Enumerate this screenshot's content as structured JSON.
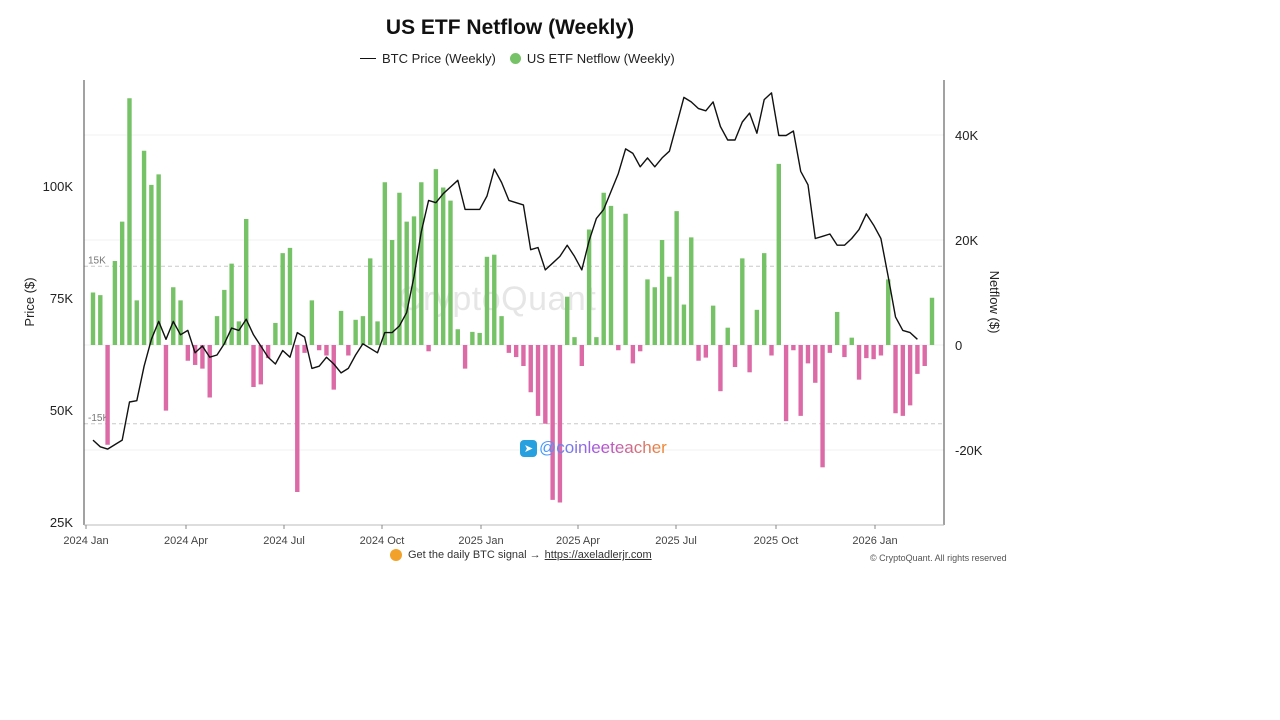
{
  "title": "US ETF Netflow (Weekly)",
  "legend": {
    "price_label": "BTC Price (Weekly)",
    "netflow_label": "US ETF Netflow (Weekly)"
  },
  "watermark": "CryptoQuant",
  "overlay": {
    "icon": "telegram-icon",
    "handle": "@coinleeteacher"
  },
  "footer": {
    "signal_text": "Get the daily BTC signal →",
    "signal_url": "https://axeladlerjr.com",
    "copyright": "© CryptoQuant. All rights reserved"
  },
  "colors": {
    "inflow": "#76c267",
    "outflow": "#dc6aa6",
    "price": "#111111",
    "refline": "#c8c8c8"
  },
  "chart_data": {
    "type": "bar+line",
    "title": "US ETF Netflow (Weekly)",
    "x_tick_labels": [
      "2024 Jan",
      "2024 Apr",
      "2024 Jul",
      "2024 Oct",
      "2025 Jan",
      "2025 Apr",
      "2025 Jul",
      "2025 Oct",
      "2026 Jan"
    ],
    "left_axis": {
      "label": "Price ($)",
      "ticks": [
        25000,
        50000,
        75000,
        100000
      ],
      "tick_labels": [
        "25K",
        "50K",
        "75K",
        "100K"
      ],
      "range": [
        25000,
        120000
      ]
    },
    "right_axis": {
      "label": "Netflow ($)",
      "ticks": [
        -20000,
        0,
        20000,
        40000
      ],
      "tick_labels": [
        "-20K",
        "0",
        "20K",
        "40K"
      ],
      "range": [
        -34000,
        50000
      ]
    },
    "reference_lines": [
      {
        "value": 15000,
        "label": "15K"
      },
      {
        "value": -15000,
        "label": "-15K"
      }
    ],
    "series": [
      {
        "name": "US ETF Netflow (Weekly)",
        "type": "bar",
        "axis": "right",
        "values": [
          10000,
          9500,
          -19000,
          16000,
          23500,
          47000,
          8500,
          37000,
          30500,
          32500,
          -12500,
          11000,
          8500,
          -3000,
          -3800,
          -4500,
          -10000,
          5500,
          10500,
          15500,
          4500,
          24000,
          -8000,
          -7500,
          -2500,
          4200,
          17500,
          18500,
          -28000,
          -1500,
          8500,
          -1000,
          -2000,
          -8500,
          6500,
          -2000,
          4800,
          5500,
          16500,
          4500,
          31000,
          20000,
          29000,
          23500,
          24500,
          31000,
          -1200,
          33500,
          30000,
          27500,
          3000,
          -4500,
          2500,
          2300,
          16800,
          17200,
          5500,
          -1500,
          -2300,
          -4000,
          -9000,
          -13500,
          -15000,
          -29500,
          -30000,
          9200,
          1500,
          -4000,
          22000,
          1500,
          29000,
          26500,
          -1000,
          25000,
          -3500,
          -1200,
          12500,
          11000,
          20000,
          13000,
          25500,
          7700,
          20500,
          -3000,
          -2400,
          7500,
          -8800,
          3300,
          -4200,
          16500,
          -5200,
          6700,
          17500,
          -2000,
          34500,
          -14500,
          -1000,
          -13500,
          -3500,
          -7200,
          -23300,
          -1500,
          6300,
          -2300,
          1400,
          -6600,
          -2500,
          -2700,
          -2000,
          12500,
          -13000,
          -13500,
          -11500,
          -5500,
          -4000,
          9000
        ],
        "note": "one bar per week, Jan 2024 – Feb 2026 (values estimated from chart)"
      },
      {
        "name": "BTC Price (Weekly)",
        "type": "line",
        "axis": "left",
        "points": [
          [
            0,
            43500
          ],
          [
            1,
            42000
          ],
          [
            2,
            41500
          ],
          [
            3,
            42500
          ],
          [
            4,
            43500
          ],
          [
            5,
            52000
          ],
          [
            6,
            52300
          ],
          [
            7,
            60000
          ],
          [
            8,
            66000
          ],
          [
            9,
            70000
          ],
          [
            10,
            66000
          ],
          [
            11,
            70000
          ],
          [
            12,
            67000
          ],
          [
            13,
            68000
          ],
          [
            14,
            63000
          ],
          [
            15,
            64500
          ],
          [
            16,
            62000
          ],
          [
            17,
            62500
          ],
          [
            18,
            65000
          ],
          [
            19,
            68500
          ],
          [
            20,
            68000
          ],
          [
            21,
            70500
          ],
          [
            22,
            67000
          ],
          [
            23,
            64500
          ],
          [
            24,
            62000
          ],
          [
            25,
            60500
          ],
          [
            26,
            63500
          ],
          [
            27,
            62000
          ],
          [
            28,
            67500
          ],
          [
            29,
            66500
          ],
          [
            30,
            59500
          ],
          [
            31,
            60000
          ],
          [
            32,
            62000
          ],
          [
            33,
            60500
          ],
          [
            34,
            58500
          ],
          [
            35,
            59500
          ],
          [
            36,
            62500
          ],
          [
            37,
            65000
          ],
          [
            38,
            64000
          ],
          [
            39,
            63000
          ],
          [
            40,
            67500
          ],
          [
            41,
            67500
          ],
          [
            42,
            69000
          ],
          [
            43,
            72000
          ],
          [
            44,
            80000
          ],
          [
            45,
            90000
          ],
          [
            46,
            97000
          ],
          [
            47,
            96500
          ],
          [
            48,
            98500
          ],
          [
            49,
            100000
          ],
          [
            50,
            101500
          ],
          [
            51,
            95000
          ],
          [
            52,
            95000
          ],
          [
            53,
            95000
          ],
          [
            54,
            98000
          ],
          [
            55,
            104000
          ],
          [
            56,
            101000
          ],
          [
            57,
            97000
          ],
          [
            58,
            96500
          ],
          [
            59,
            96000
          ],
          [
            60,
            86000
          ],
          [
            61,
            86500
          ],
          [
            62,
            81500
          ],
          [
            63,
            83000
          ],
          [
            64,
            84500
          ],
          [
            65,
            87000
          ],
          [
            66,
            84500
          ],
          [
            67,
            81500
          ],
          [
            68,
            88000
          ],
          [
            69,
            93000
          ],
          [
            70,
            95000
          ],
          [
            71,
            99000
          ],
          [
            72,
            103000
          ],
          [
            73,
            108500
          ],
          [
            74,
            107500
          ],
          [
            75,
            104500
          ],
          [
            76,
            106500
          ],
          [
            77,
            104500
          ],
          [
            78,
            106500
          ],
          [
            79,
            108000
          ],
          [
            80,
            114000
          ],
          [
            81,
            120000
          ],
          [
            82,
            119000
          ],
          [
            83,
            117500
          ],
          [
            84,
            117000
          ],
          [
            85,
            119000
          ],
          [
            86,
            113500
          ],
          [
            87,
            110500
          ],
          [
            88,
            110500
          ],
          [
            89,
            114500
          ],
          [
            90,
            116500
          ],
          [
            91,
            112000
          ],
          [
            92,
            119500
          ],
          [
            93,
            121000
          ],
          [
            94,
            111500
          ],
          [
            95,
            111500
          ],
          [
            96,
            112500
          ],
          [
            97,
            103500
          ],
          [
            98,
            100500
          ],
          [
            99,
            88500
          ],
          [
            100,
            89000
          ],
          [
            101,
            89500
          ],
          [
            102,
            87000
          ],
          [
            103,
            87000
          ],
          [
            104,
            88500
          ],
          [
            105,
            90500
          ],
          [
            106,
            94000
          ],
          [
            107,
            91500
          ],
          [
            108,
            88500
          ],
          [
            109,
            80000
          ],
          [
            110,
            71000
          ],
          [
            111,
            68000
          ],
          [
            112,
            67500
          ],
          [
            113,
            66000
          ]
        ],
        "note": "x = week index aligned with bars; y = price in USD (estimated)"
      }
    ]
  }
}
